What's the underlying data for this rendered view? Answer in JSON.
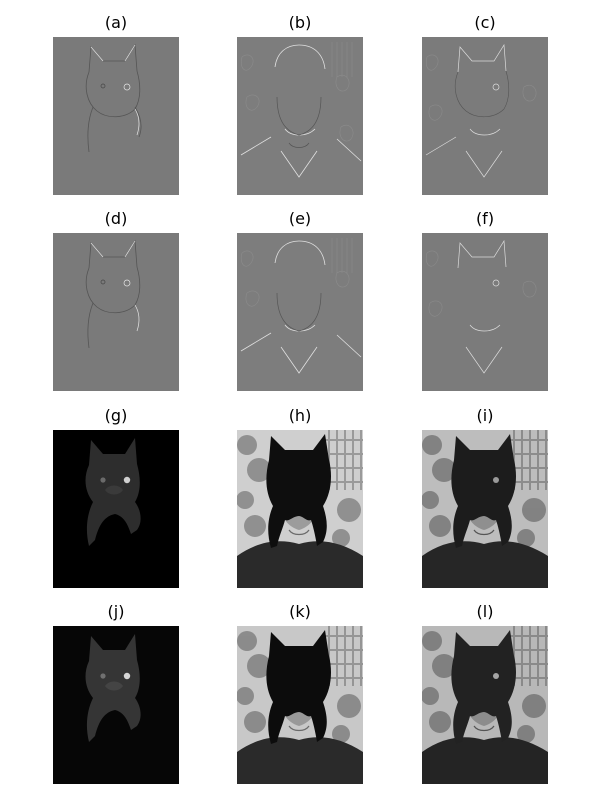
{
  "panels": [
    {
      "label": "(a)",
      "subject": "cat",
      "style": "edge"
    },
    {
      "label": "(b)",
      "subject": "man",
      "style": "edge"
    },
    {
      "label": "(c)",
      "subject": "hybrid",
      "style": "edge"
    },
    {
      "label": "(d)",
      "subject": "cat",
      "style": "edge"
    },
    {
      "label": "(e)",
      "subject": "man",
      "style": "edge"
    },
    {
      "label": "(f)",
      "subject": "hybrid",
      "style": "edge"
    },
    {
      "label": "(g)",
      "subject": "cat",
      "style": "photo"
    },
    {
      "label": "(h)",
      "subject": "man-masked",
      "style": "photo"
    },
    {
      "label": "(i)",
      "subject": "hybrid",
      "style": "photo"
    },
    {
      "label": "(j)",
      "subject": "cat",
      "style": "photo"
    },
    {
      "label": "(k)",
      "subject": "man-masked",
      "style": "photo"
    },
    {
      "label": "(l)",
      "subject": "hybrid",
      "style": "photo"
    }
  ]
}
